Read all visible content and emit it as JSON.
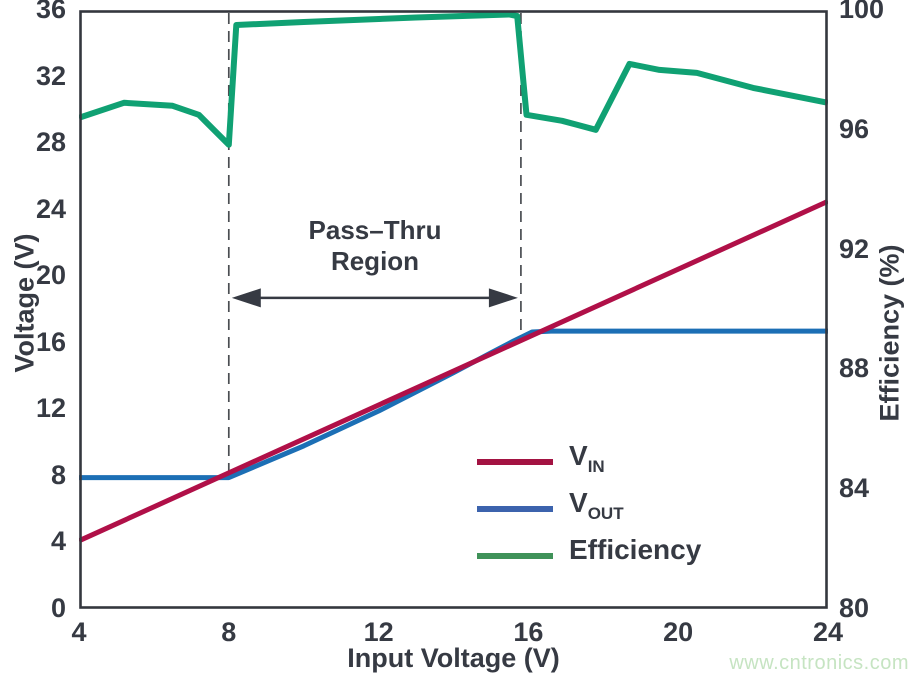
{
  "colors": {
    "text": "#363a43",
    "axis_frame": "#34373e",
    "dashed_line": "#4a4d52",
    "background": "#ffffff"
  },
  "axes": {
    "x": {
      "label": "Input Voltage (V)",
      "range": [
        4,
        24
      ],
      "ticks": [
        4,
        8,
        12,
        16,
        20,
        24
      ]
    },
    "y_left": {
      "label": "Voltage (V)",
      "range": [
        0,
        36
      ],
      "ticks": [
        0,
        4,
        8,
        12,
        16,
        20,
        24,
        28,
        32,
        36
      ]
    },
    "y_right": {
      "label": "Efficiency (%)",
      "range": [
        80,
        100
      ],
      "ticks": [
        80,
        84,
        88,
        92,
        96,
        100
      ]
    }
  },
  "legend": {
    "items": [
      {
        "main": "V",
        "sub": "IN"
      },
      {
        "main": "V",
        "sub": "OUT"
      },
      {
        "main": "Efficiency",
        "sub": ""
      }
    ]
  },
  "annotation": {
    "line1": "Pass–Thru",
    "line2": "Region"
  },
  "watermark": {
    "text": "www.cntronics.com",
    "color": "#c6e4c2"
  },
  "chart_data": {
    "type": "line",
    "title": "",
    "xlabel": "Input Voltage (V)",
    "ylabel_left": "Voltage (V)",
    "ylabel_right": "Efficiency (%)",
    "x_range": [
      4,
      24
    ],
    "y_left_range": [
      0,
      36
    ],
    "y_right_range": [
      80,
      100
    ],
    "grid": false,
    "legend_position": "inside lower-right",
    "series": [
      {
        "name": "V_IN",
        "axis": "left",
        "color": "#b01048",
        "legend_color": "#a31342",
        "points": [
          [
            4,
            4.1
          ],
          [
            24,
            24.5
          ]
        ]
      },
      {
        "name": "V_OUT",
        "axis": "left",
        "color": "#1c6fb5",
        "legend_color": "#3c63ad",
        "points": [
          [
            4,
            7.9
          ],
          [
            8,
            7.9
          ],
          [
            10,
            9.8
          ],
          [
            12,
            11.9
          ],
          [
            14,
            14.2
          ],
          [
            15,
            15.4
          ],
          [
            15.6,
            16.1
          ],
          [
            16.1,
            16.65
          ],
          [
            16.6,
            16.7
          ],
          [
            24,
            16.7
          ]
        ]
      },
      {
        "name": "Efficiency",
        "axis": "right",
        "color": "#10a173",
        "legend_color": "#3f9259",
        "points": [
          [
            4,
            96.4
          ],
          [
            5.2,
            96.9
          ],
          [
            6.5,
            96.8
          ],
          [
            7.2,
            96.5
          ],
          [
            8,
            95.5
          ],
          [
            8.2,
            99.5
          ],
          [
            10,
            99.6
          ],
          [
            13,
            99.75
          ],
          [
            15.5,
            99.85
          ],
          [
            15.7,
            99.8
          ],
          [
            15.95,
            96.5
          ],
          [
            16.9,
            96.3
          ],
          [
            17.8,
            96.0
          ],
          [
            18.7,
            98.2
          ],
          [
            19.5,
            98.0
          ],
          [
            20.5,
            97.9
          ],
          [
            22,
            97.4
          ],
          [
            24,
            96.9
          ]
        ]
      }
    ],
    "pass_thru_region": {
      "x_start": 8,
      "x_end": 15.8,
      "label": "Pass–Thru Region",
      "dashed_line_bottoms_left_axis": [
        7.9,
        16.7
      ],
      "arrow_y_left_axis": 18.7
    }
  }
}
